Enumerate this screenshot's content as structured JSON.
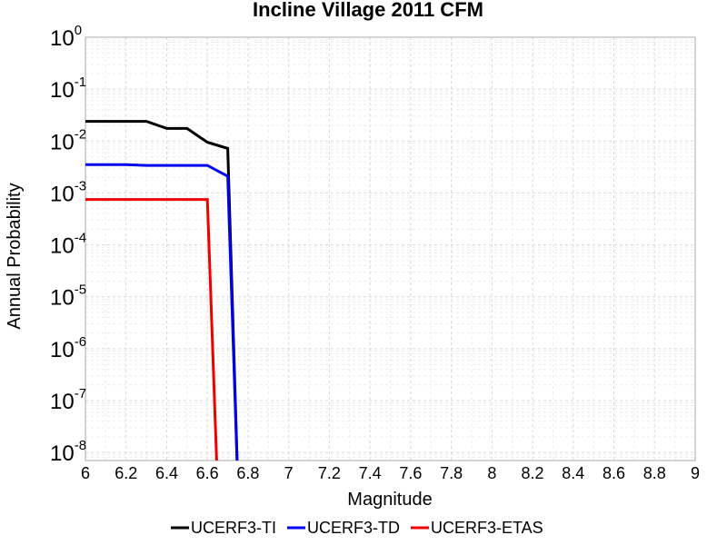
{
  "chart_data": {
    "type": "line",
    "title": "Incline Village 2011 CFM",
    "xlabel": "Magnitude",
    "ylabel": "Annual Probability",
    "xlim": [
      6,
      9
    ],
    "ylim": [
      7e-09,
      1
    ],
    "yscale": "log",
    "grid": true,
    "legend_position": "bottom",
    "x_ticks": [
      "6",
      "6.2",
      "6.4",
      "6.6",
      "6.8",
      "7",
      "7.2",
      "7.4",
      "7.6",
      "7.8",
      "8",
      "8.2",
      "8.4",
      "8.6",
      "8.8",
      "9"
    ],
    "y_ticks": [
      {
        "base": "10",
        "exp": "0"
      },
      {
        "base": "10",
        "exp": "-1"
      },
      {
        "base": "10",
        "exp": "-2"
      },
      {
        "base": "10",
        "exp": "-3"
      },
      {
        "base": "10",
        "exp": "-4"
      },
      {
        "base": "10",
        "exp": "-5"
      },
      {
        "base": "10",
        "exp": "-6"
      },
      {
        "base": "10",
        "exp": "-7"
      },
      {
        "base": "10",
        "exp": "-8"
      }
    ],
    "series": [
      {
        "name": "UCERF3-TI",
        "color": "#000000",
        "x": [
          6.0,
          6.1,
          6.2,
          6.3,
          6.4,
          6.5,
          6.6,
          6.7,
          6.75
        ],
        "y": [
          0.024,
          0.024,
          0.024,
          0.024,
          0.0175,
          0.0175,
          0.0095,
          0.0072,
          1e-09
        ]
      },
      {
        "name": "UCERF3-TD",
        "color": "#0000ee",
        "x": [
          6.0,
          6.1,
          6.2,
          6.3,
          6.4,
          6.5,
          6.6,
          6.7,
          6.75
        ],
        "y": [
          0.0035,
          0.0035,
          0.0035,
          0.0034,
          0.0034,
          0.0034,
          0.0034,
          0.0021,
          1e-09
        ]
      },
      {
        "name": "UCERF3-ETAS",
        "color": "#ee0000",
        "x": [
          6.0,
          6.1,
          6.2,
          6.3,
          6.4,
          6.5,
          6.6,
          6.65
        ],
        "y": [
          0.00075,
          0.00075,
          0.00075,
          0.00075,
          0.00075,
          0.00075,
          0.00075,
          1e-09
        ]
      }
    ]
  }
}
